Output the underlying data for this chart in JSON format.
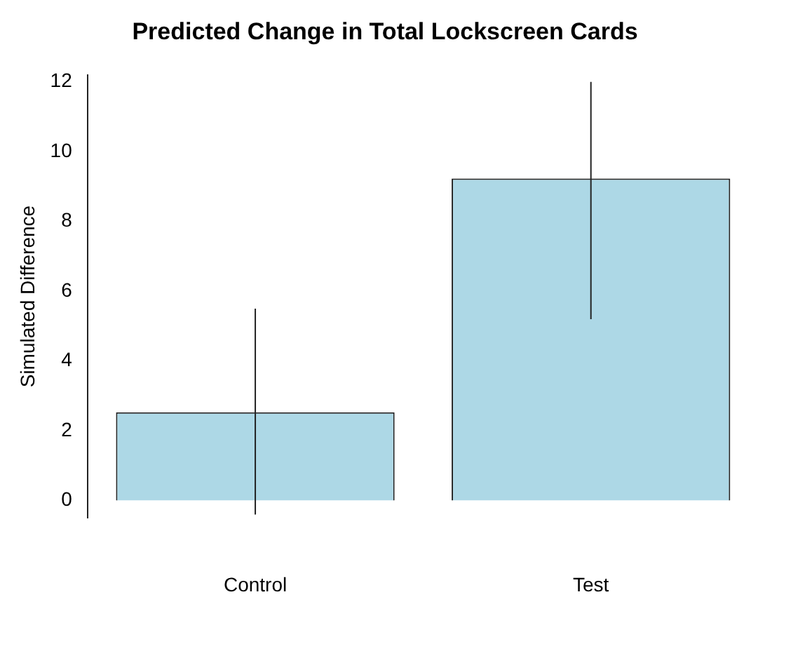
{
  "chart_data": {
    "type": "bar",
    "title": "Predicted Change in Total Lockscreen Cards",
    "ylabel": "Simulated Difference",
    "categories": [
      "Control",
      "Test"
    ],
    "values": [
      2.53,
      9.23
    ],
    "errors": [
      [
        -0.4,
        5.5
      ],
      [
        5.2,
        12
      ]
    ],
    "color": "#add8e6",
    "ylim": [
      -0.5,
      12.2
    ],
    "yticks": [
      0,
      2,
      4,
      6,
      8,
      10,
      12
    ],
    "grid": false,
    "legend": false
  }
}
